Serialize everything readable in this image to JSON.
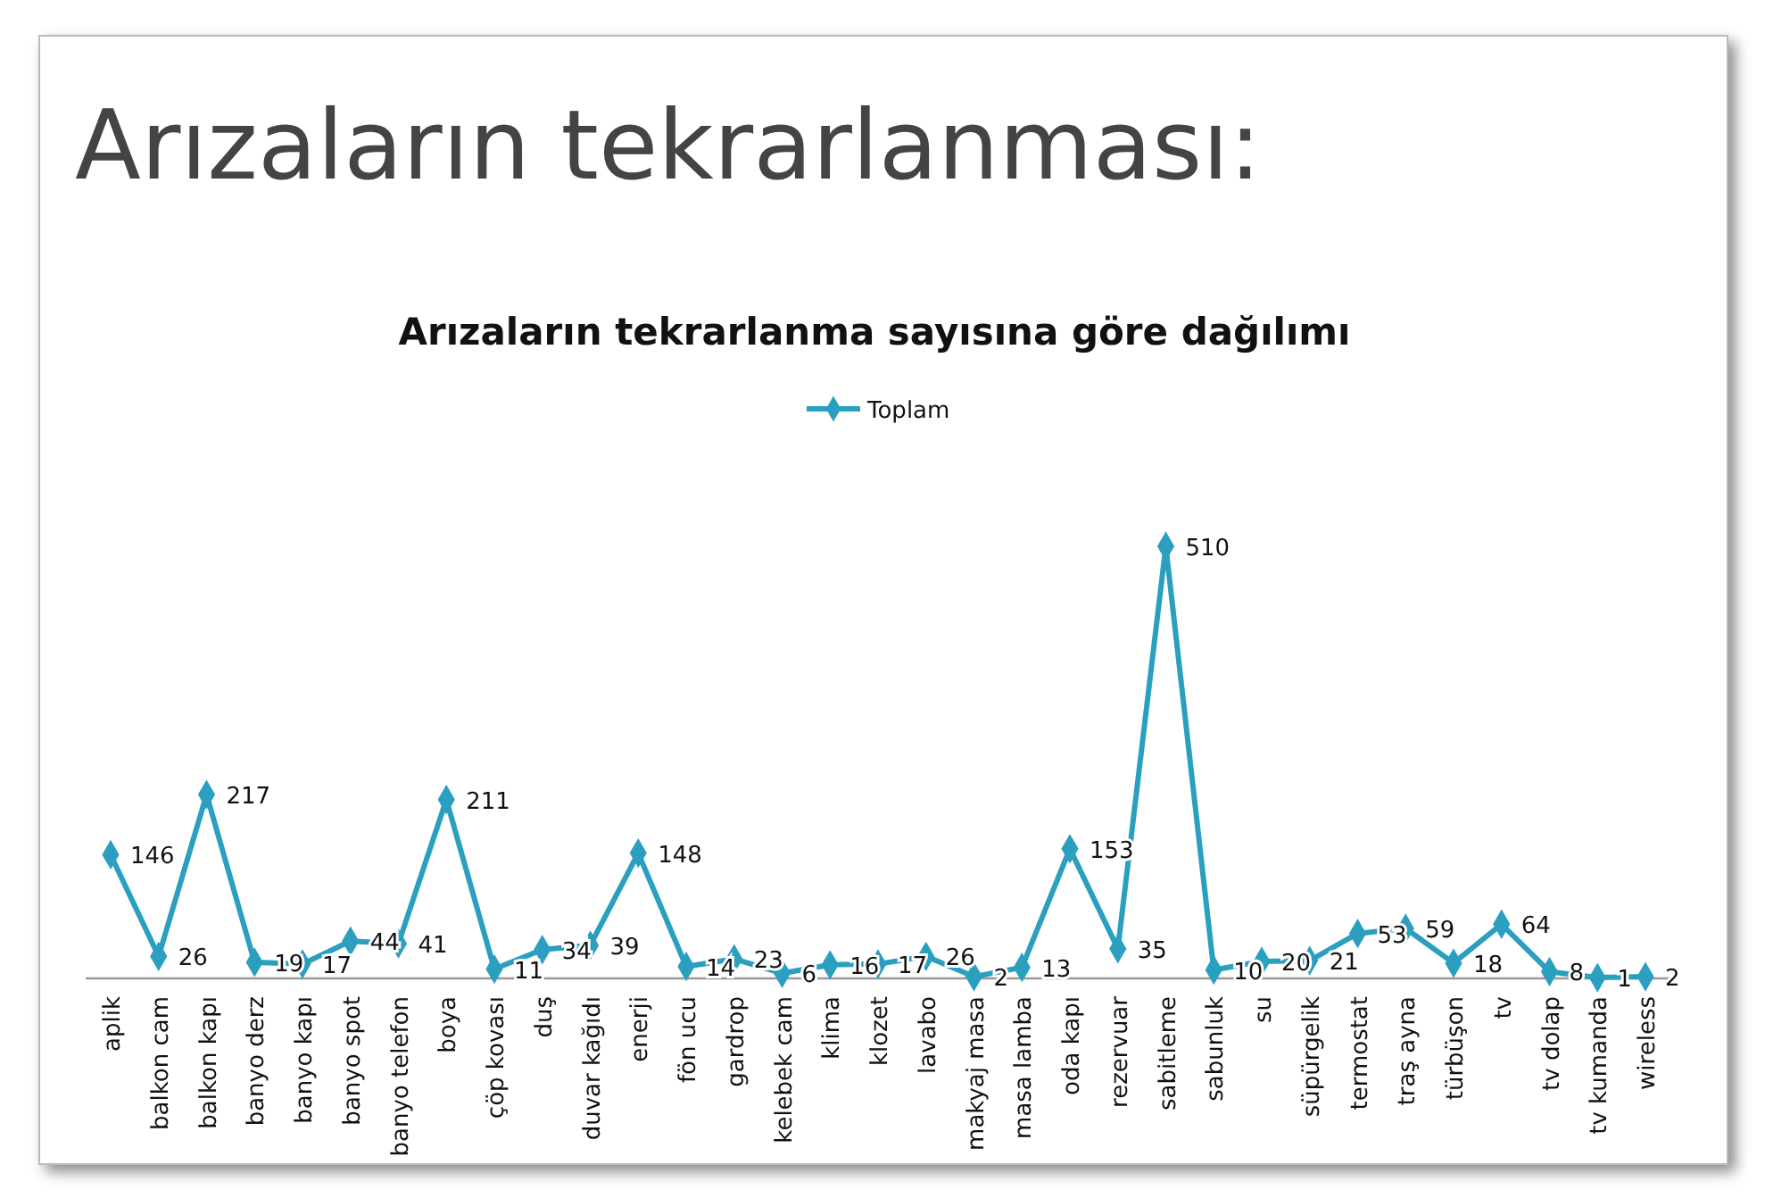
{
  "chart_data": {
    "type": "line",
    "title": "Arızaların tekrarlanması:",
    "subtitle": "Arızaların tekrarlanma sayısına göre dağılımı",
    "categories": [
      "aplik",
      "balkon cam",
      "balkon kapı",
      "banyo derz",
      "banyo kapı",
      "banyo spot",
      "banyo telefon",
      "boya",
      "çöp kovası",
      "duş",
      "duvar kağıdı",
      "enerji",
      "fön ucu",
      "gardrop",
      "kelebek cam",
      "klima",
      "klozet",
      "lavabo",
      "makyaj masa",
      "masa lamba",
      "oda kapı",
      "rezervuar",
      "sabitleme",
      "sabunluk",
      "su",
      "süpürgelik",
      "termostat",
      "traş ayna",
      "türbüşon",
      "tv",
      "tv dolap",
      "tv kumanda",
      "wireless"
    ],
    "series": [
      {
        "name": "Toplam",
        "color": "#2b9fbf",
        "values": [
          146,
          26,
          217,
          19,
          17,
          44,
          41,
          211,
          11,
          34,
          39,
          148,
          14,
          23,
          6,
          16,
          17,
          26,
          2,
          13,
          153,
          35,
          510,
          10,
          20,
          21,
          53,
          59,
          18,
          64,
          8,
          1,
          2
        ]
      }
    ],
    "data_labels": true,
    "legend": "top",
    "marker": "diamond",
    "line_style": "solid"
  }
}
